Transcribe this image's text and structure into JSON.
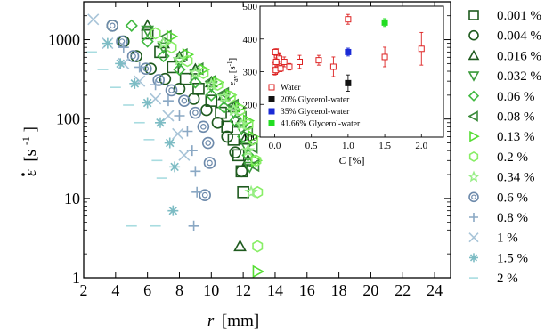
{
  "chart_data": [
    {
      "type": "scatter",
      "xlabel_var": "r",
      "xlabel_unit": "[mm]",
      "ylabel_unit": "[s",
      "ylabel_exp": "-1",
      "ylabel_close": "]",
      "xlim": [
        2,
        25
      ],
      "ylim": [
        1,
        3000
      ],
      "yscale": "log",
      "x_ticks": [
        "2",
        "4",
        "6",
        "8",
        "10",
        "12",
        "14",
        "16",
        "18",
        "20",
        "22",
        "24"
      ],
      "y_ticks": [
        "1",
        "10",
        "100",
        "1000"
      ],
      "series": [
        {
          "name": "0.001 %",
          "color": "#1e5a1e",
          "marker": "square",
          "x": [
            6.0,
            6.8,
            7.6,
            8.4,
            9.2,
            10.0,
            10.6,
            11.0,
            11.4,
            11.7,
            11.9,
            12.0
          ],
          "y": [
            1200,
            700,
            450,
            320,
            240,
            170,
            120,
            80,
            55,
            35,
            22,
            12
          ]
        },
        {
          "name": "0.004 %",
          "color": "#1e5a1e",
          "marker": "circle",
          "x": [
            3.8,
            4.5,
            5.3,
            6.2,
            7.1,
            8.0,
            8.9,
            9.7,
            10.4,
            11.0,
            11.5,
            11.9
          ],
          "y": [
            1500,
            950,
            620,
            430,
            320,
            240,
            180,
            130,
            90,
            60,
            38,
            22
          ]
        },
        {
          "name": "0.016 %",
          "color": "#1e5a1e",
          "marker": "triangle-up",
          "x": [
            6.0,
            7.0,
            8.0,
            9.0,
            10.0,
            10.8,
            11.4,
            11.8,
            12.1,
            12.3,
            11.8
          ],
          "y": [
            1500,
            900,
            600,
            420,
            290,
            200,
            140,
            90,
            55,
            30,
            2.5
          ]
        },
        {
          "name": "0.032 %",
          "color": "#3a9a3a",
          "marker": "triangle-down",
          "x": [
            6.0,
            7.0,
            8.0,
            9.0,
            10.0,
            10.8,
            11.4,
            11.9,
            12.2,
            12.4
          ],
          "y": [
            1300,
            800,
            520,
            370,
            260,
            180,
            120,
            75,
            45,
            25
          ]
        },
        {
          "name": "0.06 %",
          "color": "#3fb83f",
          "marker": "diamond",
          "x": [
            5.0,
            6.0,
            7.0,
            8.0,
            9.0,
            10.0,
            10.8,
            11.5,
            12.0,
            12.3
          ],
          "y": [
            1500,
            950,
            620,
            420,
            290,
            200,
            140,
            95,
            60,
            35
          ]
        },
        {
          "name": "0.08 %",
          "color": "#3a8a3a",
          "marker": "triangle-left",
          "x": [
            7.2,
            8.2,
            9.2,
            10.0,
            10.8,
            11.4,
            11.9,
            12.3,
            12.6,
            12.7
          ],
          "y": [
            1100,
            650,
            430,
            300,
            210,
            150,
            105,
            70,
            44,
            26
          ]
        },
        {
          "name": "0.13 %",
          "color": "#55dd33",
          "marker": "triangle-right",
          "x": [
            7.5,
            8.5,
            9.5,
            10.4,
            11.2,
            11.8,
            12.3,
            12.6,
            12.8,
            12.9
          ],
          "y": [
            1100,
            650,
            420,
            290,
            200,
            140,
            95,
            60,
            30,
            1.2
          ]
        },
        {
          "name": "0.2 %",
          "color": "#88ee66",
          "marker": "hexagon",
          "x": [
            6.5,
            7.5,
            8.5,
            9.5,
            10.4,
            11.2,
            11.8,
            12.3,
            12.6,
            12.8,
            12.9,
            12.9
          ],
          "y": [
            1200,
            800,
            540,
            380,
            270,
            190,
            130,
            85,
            55,
            30,
            12,
            2.5
          ]
        },
        {
          "name": "0.34 %",
          "color": "#99ee88",
          "marker": "star",
          "x": [
            7.0,
            8.0,
            9.0,
            10.0,
            10.8,
            11.4,
            11.9,
            12.3,
            12.5
          ],
          "y": [
            900,
            560,
            380,
            270,
            190,
            130,
            85,
            40,
            12
          ]
        },
        {
          "name": "0.6 %",
          "color": "#6d8aab",
          "marker": "circle-dot",
          "x": [
            3.8,
            4.4,
            5.1,
            5.9,
            6.7,
            7.5,
            8.3,
            9.0,
            9.5,
            9.8,
            9.9,
            9.6
          ],
          "y": [
            1500,
            950,
            620,
            430,
            310,
            230,
            170,
            120,
            80,
            50,
            28,
            11
          ]
        },
        {
          "name": "0.8 %",
          "color": "#8aa8c4",
          "marker": "plus",
          "x": [
            4.5,
            5.5,
            6.5,
            7.3,
            8.0,
            8.5,
            8.8,
            9.0,
            9.1,
            8.9
          ],
          "y": [
            800,
            450,
            270,
            170,
            110,
            70,
            40,
            22,
            12,
            4.5
          ]
        },
        {
          "name": "1 %",
          "color": "#a8c4d8",
          "marker": "cross",
          "x": [
            2.6,
            3.5,
            4.5,
            5.5,
            6.5,
            7.3,
            7.9,
            8.3
          ],
          "y": [
            1800,
            900,
            500,
            300,
            180,
            110,
            65,
            35
          ]
        },
        {
          "name": "1.5 %",
          "color": "#7dbcc4",
          "marker": "asterisk",
          "x": [
            3.5,
            4.3,
            5.2,
            6.0,
            6.8,
            7.4,
            7.7,
            7.6
          ],
          "y": [
            900,
            500,
            280,
            160,
            90,
            50,
            25,
            7
          ]
        },
        {
          "name": "2 %",
          "color": "#a8dce0",
          "marker": "dash",
          "x": [
            2.5,
            3.2,
            4.0,
            4.8,
            5.5,
            6.1,
            6.6,
            6.9,
            6.5,
            5.0
          ],
          "y": [
            700,
            420,
            250,
            150,
            90,
            55,
            30,
            18,
            4.5,
            4.5
          ]
        }
      ]
    },
    {
      "type": "scatter",
      "xlabel_var": "C",
      "xlabel_unit": "[%]",
      "ylabel_var": "ε",
      "ylabel_sub": "av",
      "ylabel_unit": "[s",
      "ylabel_exp": "-1",
      "ylabel_close": "]",
      "xlim": [
        -0.2,
        2.3
      ],
      "ylim": [
        100,
        500
      ],
      "x_ticks": [
        "0.0",
        "0.5",
        "1.0",
        "1.5",
        "2.0"
      ],
      "y_ticks": [
        "100",
        "200",
        "300",
        "400",
        "500"
      ],
      "series": [
        {
          "name": "Water",
          "color": "#dd2222",
          "filled": false,
          "x": [
            0.001,
            0.004,
            0.016,
            0.032,
            0.06,
            0.08,
            0.13,
            0.2,
            0.34,
            0.6,
            0.8,
            1.0,
            1.5,
            2.0,
            0.01,
            0.02
          ],
          "y": [
            300,
            320,
            305,
            350,
            340,
            310,
            330,
            315,
            330,
            335,
            315,
            460,
            345,
            370,
            360,
            330
          ],
          "err": [
            10,
            15,
            12,
            20,
            15,
            10,
            15,
            10,
            20,
            15,
            30,
            15,
            30,
            50,
            10,
            12
          ]
        },
        {
          "name": "20% Glycerol-water",
          "color": "#111111",
          "filled": true,
          "x": [
            1.0
          ],
          "y": [
            265
          ],
          "err": [
            25
          ]
        },
        {
          "name": "35% Glycerol-water",
          "color": "#1a2ad6",
          "filled": true,
          "x": [
            1.0
          ],
          "y": [
            360
          ],
          "err": [
            12
          ]
        },
        {
          "name": "41.66% Glycerol-water",
          "color": "#22dd22",
          "filled": true,
          "x": [
            1.5
          ],
          "y": [
            450
          ],
          "err": [
            12
          ]
        }
      ]
    }
  ]
}
